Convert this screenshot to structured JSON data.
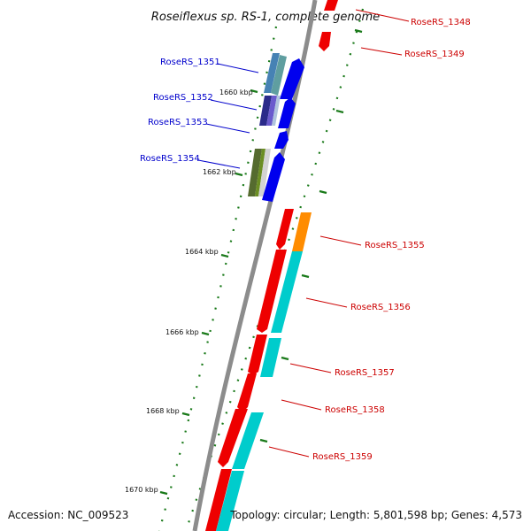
{
  "title": "Roseiflexus sp. RS-1, complete genome",
  "footer": {
    "accession": "Accession: NC_009523",
    "topology": "Topology: circular; Length: 5,801,598 bp; Genes: 4,573"
  },
  "colors": {
    "forward_label": "#cc0000",
    "reverse_label": "#0000cc",
    "backbone": "#8c8c8c",
    "tick": "#1a7a1a"
  },
  "scale_labels": [
    "1660 kbp",
    "1662 kbp",
    "1664 kbp",
    "1666 kbp",
    "1668 kbp",
    "1670 kbp"
  ],
  "reverse_genes": [
    "RoseRS_1351",
    "RoseRS_1352",
    "RoseRS_1353",
    "RoseRS_1354"
  ],
  "forward_genes": [
    "RoseRS_1348",
    "RoseRS_1349",
    "RoseRS_1355",
    "RoseRS_1356",
    "RoseRS_1357",
    "RoseRS_1358",
    "RoseRS_1359"
  ]
}
